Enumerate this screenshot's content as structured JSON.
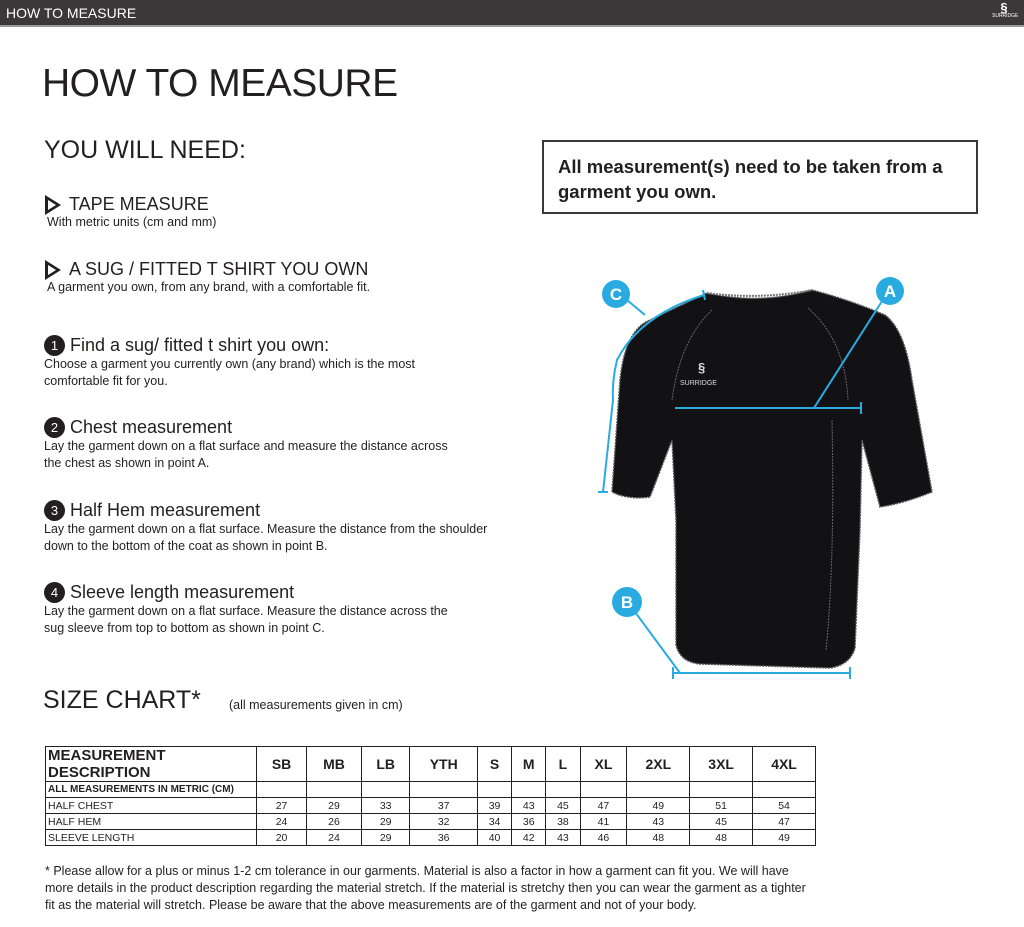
{
  "topbar": {
    "title": "HOW TO MEASURE",
    "logo_text": "SURRIDGE"
  },
  "page_title": "HOW TO MEASURE",
  "you_will_need": {
    "heading": "YOU WILL NEED:",
    "items": [
      {
        "title": "TAPE MEASURE",
        "desc": "With metric units (cm and mm)"
      },
      {
        "title": "A SUG / FITTED T SHIRT YOU OWN",
        "desc": "A garment you own, from any brand, with a comfortable fit."
      }
    ]
  },
  "steps": [
    {
      "num": "1",
      "title": "Find a sug/ fitted t shirt you own:",
      "desc": "Choose a garment you currently own (any brand) which is the most comfortable fit for you."
    },
    {
      "num": "2",
      "title": "Chest measurement",
      "desc": "Lay the garment down on a flat surface and measure the distance across the chest as shown in point A."
    },
    {
      "num": "3",
      "title": "Half Hem measurement",
      "desc": "Lay the garment down on a flat surface. Measure the distance from the shoulder down to the bottom of the coat as shown in point B."
    },
    {
      "num": "4",
      "title": "Sleeve length measurement",
      "desc": "Lay the garment down on a flat surface. Measure the distance across the sug sleeve from top to bottom as shown in point C."
    }
  ],
  "notice": "All measurement(s) need to be taken from a garment you own.",
  "diagram": {
    "labels": {
      "a": "A",
      "b": "B",
      "c": "C"
    },
    "shirt_logo": "SURRIDGE",
    "accent": "#29abe2"
  },
  "size_chart": {
    "heading": "SIZE CHART*",
    "subheading": "(all measurements given in cm)",
    "header": [
      "MEASUREMENT DESCRIPTION",
      "SB",
      "MB",
      "LB",
      "YTH",
      "S",
      "M",
      "L",
      "XL",
      "2XL",
      "3XL",
      "4XL"
    ],
    "metric_row": "ALL MEASUREMENTS IN METRIC (CM)",
    "rows": [
      {
        "label": "HALF CHEST",
        "values": [
          "27",
          "29",
          "33",
          "37",
          "39",
          "43",
          "45",
          "47",
          "49",
          "51",
          "54"
        ]
      },
      {
        "label": "HALF HEM",
        "values": [
          "24",
          "26",
          "29",
          "32",
          "34",
          "36",
          "38",
          "41",
          "43",
          "45",
          "47"
        ]
      },
      {
        "label": "SLEEVE LENGTH",
        "values": [
          "20",
          "24",
          "29",
          "36",
          "40",
          "42",
          "43",
          "46",
          "48",
          "48",
          "49"
        ]
      }
    ]
  },
  "footnote": "* Please allow for a plus or minus 1-2 cm tolerance in our garments. Material is also a factor in how a garment can fit you. We will have more details in the product description regarding the material stretch.  If the material is stretchy then you can wear the garment as a tighter fit as the material will stretch.  Please be aware that the above measurements are of the garment and not of your body."
}
